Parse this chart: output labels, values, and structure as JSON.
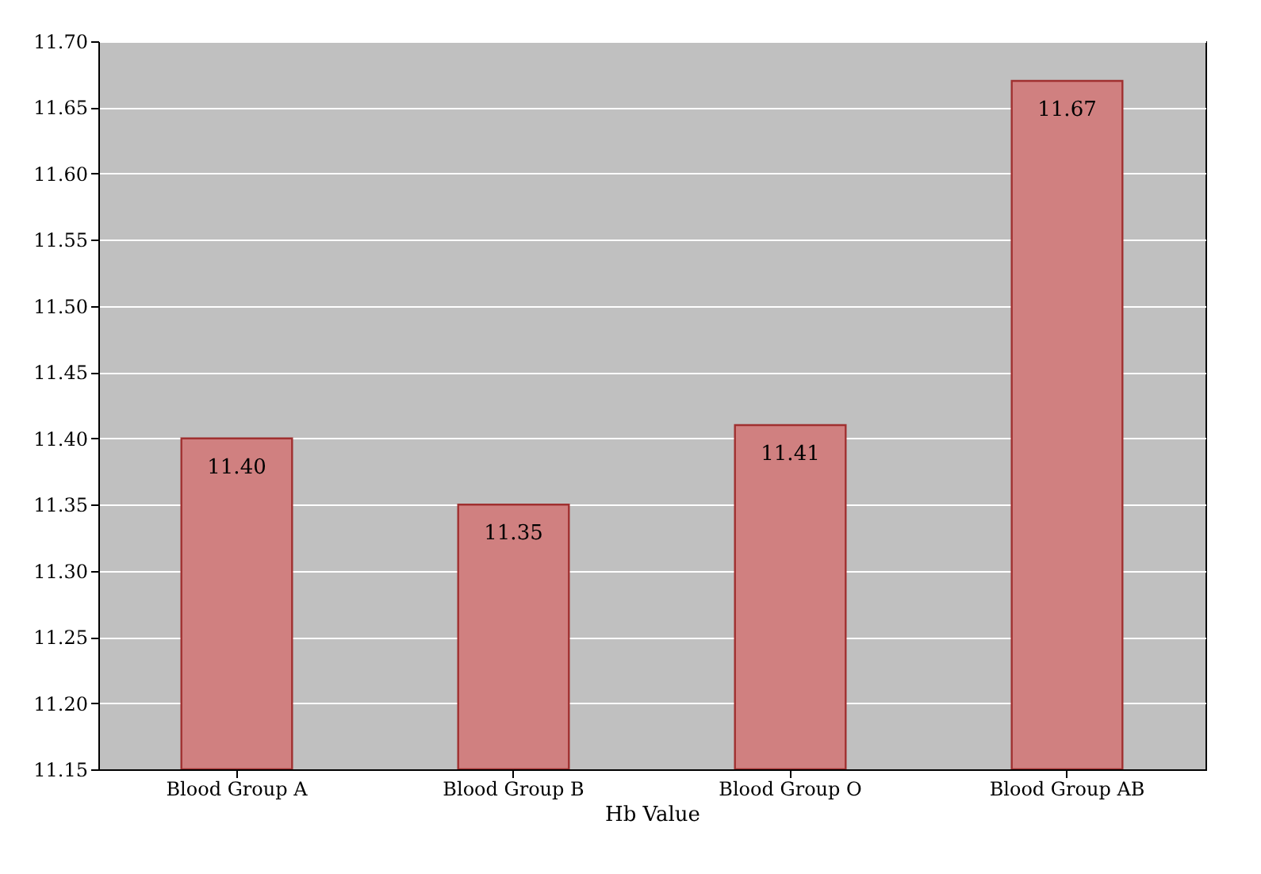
{
  "chart_data": {
    "type": "bar",
    "xlabel": "Hb Value",
    "categories": [
      "Blood Group A",
      "Blood Group B",
      "Blood Group O",
      "Blood Group AB"
    ],
    "values": [
      11.4,
      11.35,
      11.41,
      11.67
    ],
    "value_labels": [
      "11.40",
      "11.35",
      "11.41",
      "11.67"
    ],
    "color": "#d08080",
    "ylim": [
      11.15,
      11.7
    ],
    "yticks": [
      {
        "value": 11.15,
        "label": "11.15"
      },
      {
        "value": 11.2,
        "label": "11.20"
      },
      {
        "value": 11.25,
        "label": "11.25"
      },
      {
        "value": 11.3,
        "label": "11.30"
      },
      {
        "value": 11.35,
        "label": "11.35"
      },
      {
        "value": 11.4,
        "label": "11.40"
      },
      {
        "value": 11.45,
        "label": "11.45"
      },
      {
        "value": 11.5,
        "label": "11.50"
      },
      {
        "value": 11.55,
        "label": "11.55"
      },
      {
        "value": 11.6,
        "label": "11.60"
      },
      {
        "value": 11.65,
        "label": "11.65"
      },
      {
        "value": 11.7,
        "label": "11.70"
      }
    ],
    "grid": "y"
  }
}
